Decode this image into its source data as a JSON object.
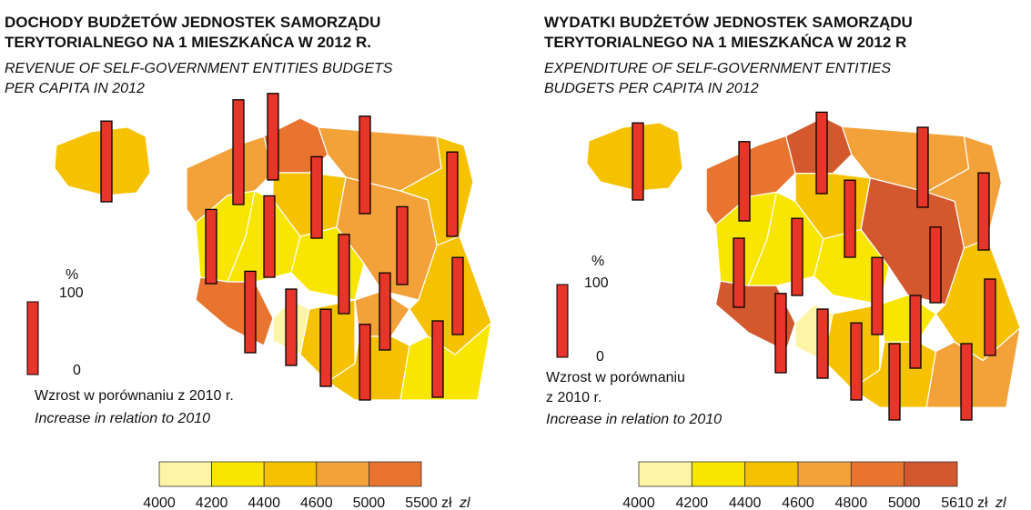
{
  "maps": [
    {
      "title": [
        "DOCHODY BUDŻETÓW JEDNOSTEK SAMORZĄDU",
        "TERYTORIALNEGO NA 1 MIESZKAŃCA W 2012 R."
      ],
      "subtitle": [
        "REVENUE OF SELF-GOVERNMENT ENTITIES BUDGETS",
        "PER CAPITA IN 2012"
      ],
      "bar_legend": {
        "unit": "%",
        "max": 100,
        "min": 0,
        "label": [
          "Wzrost w porównaniu z 2010 r."
        ],
        "label_en": "Increase in relation to 2010"
      },
      "color_scale": {
        "colors": [
          "#fdf4a6",
          "#f9e600",
          "#f6c200",
          "#f3a23a",
          "#e8742f"
        ],
        "breaks": [
          4000,
          4200,
          4400,
          4600,
          5000,
          5500
        ],
        "unit": "zł",
        "unit_en": "zl"
      },
      "bars": [
        111,
        144,
        119,
        134,
        112,
        116,
        102,
        112,
        107,
        109,
        106,
        112,
        105,
        106,
        106,
        104,
        105
      ]
    },
    {
      "title": [
        "WYDATKI BUDŻETÓW JEDNOSTEK SAMORZĄDU",
        "TERYTORIALNEGO NA 1 MIESZKAŃCA W 2012 R"
      ],
      "subtitle": [
        "EXPENDITURE OF SELF-GOVERNMENT ENTITIES",
        "BUDGETS PER CAPITA IN 2012"
      ],
      "bar_legend": {
        "unit": "%",
        "max": 100,
        "min": 0,
        "label": [
          "Wzrost w porównaniu",
          "z 2010 r."
        ],
        "label_en": "Increase in relation to 2010"
      },
      "color_scale": {
        "colors": [
          "#fdf4a6",
          "#f9e600",
          "#f6c200",
          "#f3a23a",
          "#e8742f",
          "#d4582e"
        ],
        "breaks": [
          4000,
          4200,
          4400,
          4600,
          4800,
          5000,
          5610
        ],
        "unit": "zł",
        "unit_en": "zl"
      },
      "bars": [
        106,
        109,
        112,
        110,
        106,
        106,
        95,
        106,
        104,
        106,
        105,
        109,
        95,
        106,
        100,
        105,
        105
      ]
    }
  ]
}
